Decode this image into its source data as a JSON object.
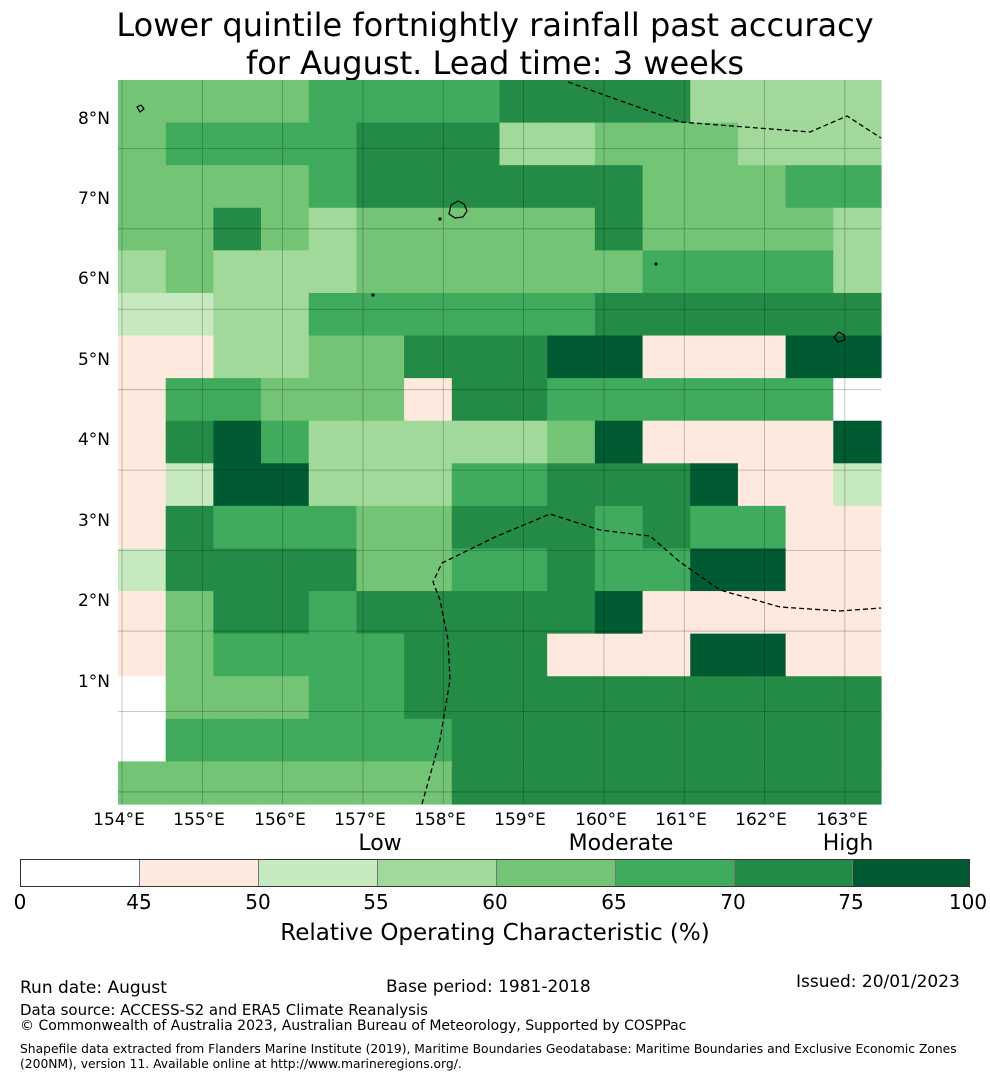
{
  "title": {
    "line1": "Lower quintile fortnightly rainfall past accuracy",
    "line2": "for August. Lead time: 3 weeks"
  },
  "map": {
    "lat_labels": [
      "8°N",
      "7°N",
      "6°N",
      "5°N",
      "4°N",
      "3°N",
      "2°N",
      "1°N"
    ],
    "lon_labels": [
      "154°E",
      "155°E",
      "156°E",
      "157°E",
      "158°E",
      "159°E",
      "160°E",
      "161°E",
      "162°E",
      "163°E"
    ],
    "lon_range": [
      153.95,
      163.45
    ],
    "lat_range": [
      -0.15,
      8.85
    ],
    "legend_class_colors": [
      "#ffffff",
      "#fee9df",
      "#c7e9c0",
      "#a1d99b",
      "#74c476",
      "#41ab5d",
      "#238b45",
      "#005a32"
    ],
    "grid_rows": [
      "4444555566663333",
      "4555566633444333",
      "4444566666644455",
      "4464344444644443",
      "3433344444455553",
      "2233555555666666",
      "1133446667711177",
      "1554441665555550",
      "1675333334711117",
      "1277333556667112",
      "1655544666565511",
      "2666644556557711",
      "1466566666711111",
      "1455556661117711",
      "0444556666666666",
      "0555555666666666",
      "4444444666666666"
    ]
  },
  "legend": {
    "categories": [
      "Low",
      "Moderate",
      "High"
    ],
    "ticks": [
      "0",
      "45",
      "50",
      "55",
      "60",
      "65",
      "70",
      "75",
      "100"
    ],
    "title": "Relative Operating Characteristic (%)"
  },
  "footer": {
    "run_date": "Run date: August",
    "base_period": "Base period: 1981-2018",
    "issued": "Issued: 20/01/2023",
    "data_source": "Data source: ACCESS-S2 and ERA5 Climate Reanalysis",
    "copyright": "© Commonwealth of Australia 2023, Australian Bureau of Meteorology, Supported by COSPPac",
    "shapefile": "Shapefile data extracted from Flanders Marine Institute (2019), Maritime Boundaries Geodatabase: Maritime Boundaries and Exclusive Economic Zones (200NM), version 11. Available online at http://www.marineregions.org/."
  }
}
